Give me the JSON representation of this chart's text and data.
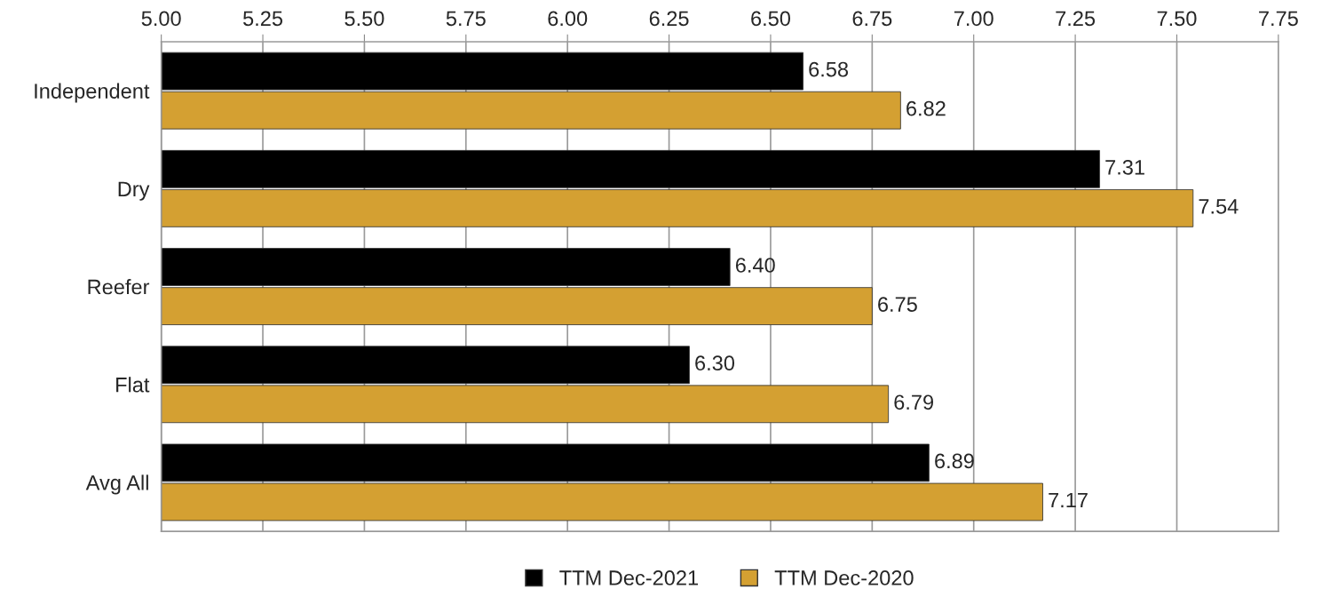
{
  "chart_data": {
    "type": "bar",
    "orientation": "horizontal",
    "categories": [
      "Independent",
      "Dry",
      "Reefer",
      "Flat",
      "Avg All"
    ],
    "series": [
      {
        "name": "TTM Dec-2021",
        "color": "#000000",
        "values": [
          6.58,
          7.31,
          6.4,
          6.3,
          6.89
        ],
        "value_labels": [
          "6.58",
          "7.31",
          "6.40",
          "6.30",
          "6.89"
        ]
      },
      {
        "name": "TTM Dec-2020",
        "color": "#d4a032",
        "values": [
          6.82,
          7.54,
          6.75,
          6.79,
          7.17
        ],
        "value_labels": [
          "6.82",
          "7.54",
          "6.75",
          "6.79",
          "7.17"
        ]
      }
    ],
    "xlim": [
      5,
      7.75
    ],
    "xticks": [
      {
        "value": 5,
        "label": "5.00"
      },
      {
        "value": 5.25,
        "label": "5.25"
      },
      {
        "value": 5.5,
        "label": "5.50"
      },
      {
        "value": 5.75,
        "label": "5.75"
      },
      {
        "value": 6,
        "label": "6.00"
      },
      {
        "value": 6.25,
        "label": "6.25"
      },
      {
        "value": 6.5,
        "label": "6.50"
      },
      {
        "value": 6.75,
        "label": "6.75"
      },
      {
        "value": 7,
        "label": "7.00"
      },
      {
        "value": 7.25,
        "label": "7.25"
      },
      {
        "value": 7.5,
        "label": "7.50"
      },
      {
        "value": 7.75,
        "label": "7.75"
      }
    ],
    "grid": "x",
    "legend": "bottom"
  }
}
